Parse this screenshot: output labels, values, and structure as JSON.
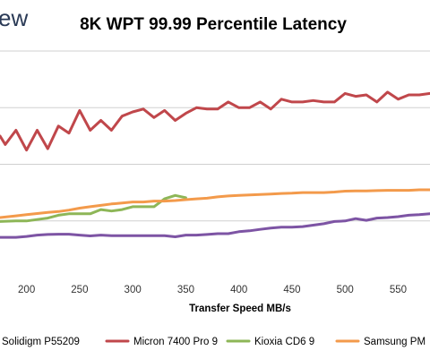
{
  "brand": {
    "text": "ew"
  },
  "chart_data": {
    "type": "line",
    "title": "8K WPT 99.99 Percentile Latency",
    "xlabel": "Transfer Speed MB/s",
    "ylabel": "",
    "xlim": [
      175,
      580
    ],
    "ylim": [
      0,
      8
    ],
    "x_ticks": [
      "200",
      "250",
      "300",
      "350",
      "400",
      "450",
      "500",
      "550"
    ],
    "grid": true,
    "legend_position": "bottom",
    "series": [
      {
        "name": "Solidigm P55209",
        "color": "#7d54a4",
        "x": [
          175,
          190,
          200,
          210,
          220,
          230,
          240,
          250,
          260,
          270,
          280,
          290,
          300,
          310,
          320,
          330,
          340,
          350,
          360,
          370,
          380,
          390,
          400,
          410,
          420,
          430,
          440,
          450,
          460,
          470,
          480,
          490,
          500,
          510,
          520,
          530,
          540,
          550,
          560,
          570,
          580
        ],
        "y": [
          1.42,
          1.42,
          1.45,
          1.5,
          1.52,
          1.53,
          1.53,
          1.5,
          1.47,
          1.5,
          1.48,
          1.48,
          1.48,
          1.48,
          1.48,
          1.48,
          1.44,
          1.5,
          1.5,
          1.52,
          1.55,
          1.55,
          1.62,
          1.65,
          1.7,
          1.75,
          1.78,
          1.78,
          1.8,
          1.85,
          1.9,
          1.98,
          2.0,
          2.08,
          2.02,
          2.1,
          2.12,
          2.15,
          2.2,
          2.22,
          2.25
        ]
      },
      {
        "name": "Micron 7400 Pro 9",
        "color": "#c0474b",
        "x": [
          175,
          180,
          190,
          200,
          210,
          220,
          230,
          240,
          250,
          260,
          270,
          280,
          290,
          300,
          310,
          320,
          330,
          340,
          350,
          360,
          370,
          380,
          390,
          400,
          410,
          420,
          430,
          440,
          450,
          460,
          470,
          480,
          490,
          500,
          510,
          520,
          530,
          540,
          550,
          560,
          570,
          580
        ],
        "y": [
          5.0,
          4.7,
          5.2,
          4.5,
          5.2,
          4.55,
          5.35,
          5.1,
          5.9,
          5.2,
          5.55,
          5.2,
          5.7,
          5.85,
          5.95,
          5.65,
          5.9,
          5.55,
          5.8,
          6.0,
          5.95,
          5.95,
          6.2,
          6.0,
          6.0,
          6.2,
          5.95,
          6.3,
          6.2,
          6.2,
          6.25,
          6.2,
          6.2,
          6.5,
          6.4,
          6.45,
          6.2,
          6.55,
          6.3,
          6.45,
          6.45,
          6.5
        ]
      },
      {
        "name": "Kioxia CD6 9",
        "color": "#8db657",
        "x": [
          175,
          190,
          200,
          210,
          220,
          230,
          240,
          250,
          260,
          270,
          280,
          290,
          300,
          310,
          320,
          330,
          340,
          350
        ],
        "y": [
          1.98,
          2.0,
          2.0,
          2.05,
          2.1,
          2.2,
          2.25,
          2.25,
          2.25,
          2.4,
          2.35,
          2.4,
          2.5,
          2.5,
          2.5,
          2.78,
          2.9,
          2.82
        ]
      },
      {
        "name": "Samsung PM",
        "color": "#f39a4b",
        "x": [
          175,
          190,
          200,
          210,
          220,
          230,
          240,
          250,
          260,
          270,
          280,
          290,
          300,
          310,
          320,
          330,
          340,
          350,
          360,
          370,
          380,
          390,
          400,
          410,
          420,
          430,
          440,
          450,
          460,
          470,
          480,
          490,
          500,
          510,
          520,
          530,
          540,
          550,
          560,
          570,
          580
        ],
        "y": [
          2.12,
          2.18,
          2.22,
          2.26,
          2.3,
          2.33,
          2.38,
          2.45,
          2.5,
          2.55,
          2.6,
          2.63,
          2.67,
          2.67,
          2.7,
          2.7,
          2.72,
          2.75,
          2.78,
          2.8,
          2.85,
          2.88,
          2.9,
          2.92,
          2.93,
          2.95,
          2.97,
          2.98,
          3.0,
          3.0,
          3.0,
          3.02,
          3.05,
          3.06,
          3.06,
          3.07,
          3.08,
          3.08,
          3.08,
          3.1,
          3.1
        ]
      }
    ]
  }
}
